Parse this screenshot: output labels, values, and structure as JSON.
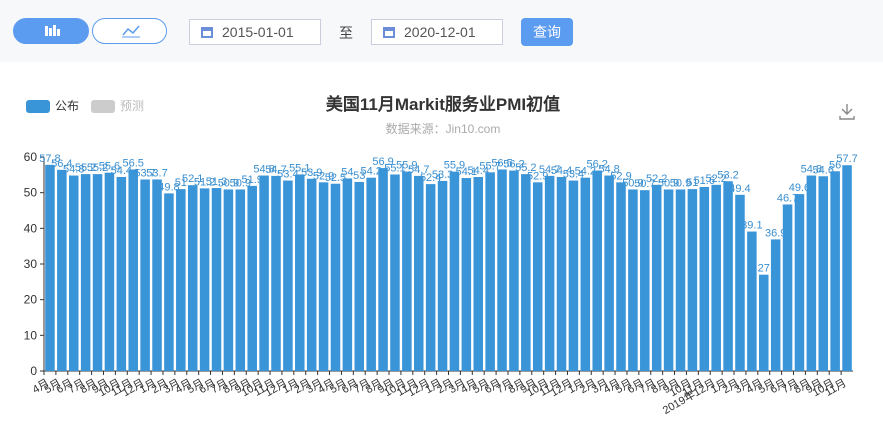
{
  "toolbar": {
    "start_date": "2015-01-01",
    "separator": "至",
    "end_date": "2020-12-01",
    "query_button": "查询"
  },
  "chart_data": {
    "type": "bar",
    "title": "美国11月Markit服务业PMI初值",
    "subtitle": "数据来源：Jin10.com",
    "legend": [
      "公布",
      "预测"
    ],
    "legend_colors": [
      "#3a95d8",
      "#cccccc"
    ],
    "categories": [
      "4月",
      "5月",
      "6月",
      "7月",
      "8月",
      "9月",
      "10月",
      "11月",
      "12月",
      "1月",
      "2月",
      "3月",
      "4月",
      "5月",
      "6月",
      "7月",
      "8月",
      "9月",
      "10月",
      "11月",
      "12月",
      "1月",
      "2月",
      "3月",
      "4月",
      "5月",
      "6月",
      "7月",
      "8月",
      "9月",
      "10月",
      "11月",
      "12月",
      "1月",
      "2月",
      "3月",
      "4月",
      "5月",
      "6月",
      "7月",
      "8月",
      "9月",
      "10月",
      "11月",
      "12月",
      "1月",
      "2月",
      "3月",
      "4月",
      "5月",
      "6月",
      "7月",
      "8月",
      "9月",
      "10月",
      "11月",
      "2019年12月",
      "1月",
      "2月",
      "3月",
      "4月",
      "5月",
      "6月",
      "7月",
      "8月",
      "9月",
      "10月",
      "11月"
    ],
    "values": [
      57.8,
      56.4,
      54.8,
      55.2,
      55.2,
      55.6,
      54.4,
      56.5,
      53.7,
      53.7,
      49.8,
      51.0,
      52.1,
      51.2,
      51.3,
      50.9,
      50.9,
      51.9,
      54.8,
      54.7,
      53.4,
      55.1,
      53.9,
      52.9,
      52.5,
      54.0,
      53.0,
      54.2,
      56.9,
      55.1,
      55.9,
      54.7,
      52.4,
      53.3,
      55.9,
      54.1,
      54.4,
      55.7,
      56.5,
      56.2,
      55.2,
      52.9,
      54.7,
      54.4,
      53.4,
      54.2,
      56.2,
      54.8,
      52.9,
      50.9,
      50.7,
      52.2,
      50.9,
      50.9,
      51.0,
      51.6,
      52.2,
      53.2,
      49.4,
      39.1,
      27.0,
      36.9,
      46.7,
      49.6,
      54.8,
      54.6,
      56.0,
      57.7
    ],
    "color": "#3a95d8",
    "ylim": [
      0,
      60
    ],
    "yticks": [
      0,
      10,
      20,
      30,
      40,
      50,
      60
    ],
    "grid": false
  }
}
